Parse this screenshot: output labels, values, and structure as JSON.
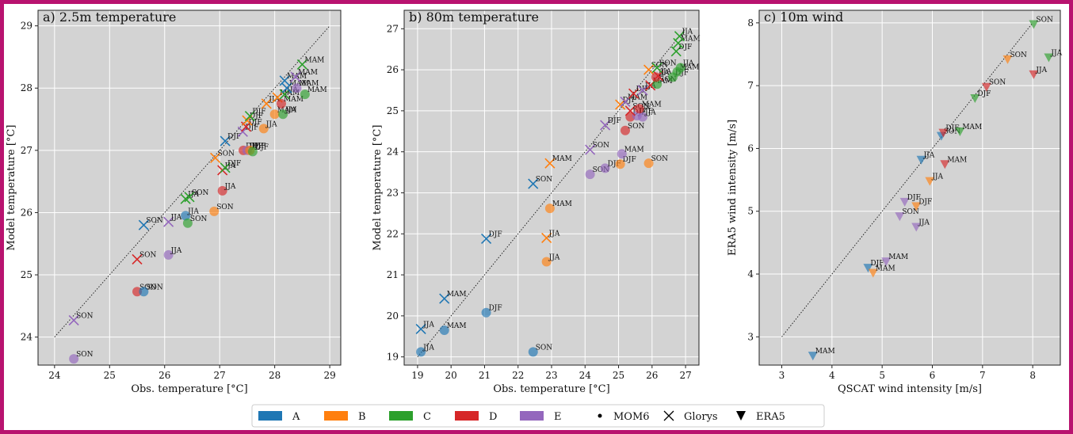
{
  "colors": {
    "frame": "#b8136f",
    "panel_bg": "#d3d3d3",
    "grid": "#ffffff",
    "A": "#1f77b4",
    "B": "#ff7f0e",
    "C": "#2ca02c",
    "D": "#d62728",
    "E": "#9467bd"
  },
  "legend": {
    "items": [
      {
        "label": "A",
        "kind": "patch",
        "color": "#1f77b4"
      },
      {
        "label": "B",
        "kind": "patch",
        "color": "#ff7f0e"
      },
      {
        "label": "C",
        "kind": "patch",
        "color": "#2ca02c"
      },
      {
        "label": "D",
        "kind": "patch",
        "color": "#d62728"
      },
      {
        "label": "E",
        "kind": "patch",
        "color": "#9467bd"
      },
      {
        "label": "MOM6",
        "kind": "dot"
      },
      {
        "label": "Glorys",
        "kind": "cross"
      },
      {
        "label": "ERA5",
        "kind": "triangle"
      }
    ]
  },
  "chart_data": [
    {
      "type": "scatter",
      "title": "a) 2.5m temperature",
      "xlabel": "Obs. temperature [°C]",
      "ylabel": "Model temperature [°C]",
      "xlim": [
        23.7,
        29.2
      ],
      "ylim": [
        23.55,
        29.25
      ],
      "xticks": [
        24,
        25,
        26,
        27,
        28,
        29
      ],
      "yticks": [
        24,
        25,
        26,
        27,
        28,
        29
      ],
      "diagonal": [
        24,
        29
      ],
      "grid": true,
      "points": [
        {
          "x": 24.35,
          "y": 23.65,
          "region": "E",
          "source": "MOM6",
          "label": "SON"
        },
        {
          "x": 24.35,
          "y": 24.27,
          "region": "E",
          "source": "Glorys",
          "label": "SON"
        },
        {
          "x": 25.5,
          "y": 24.73,
          "region": "D",
          "source": "MOM6",
          "label": "SON"
        },
        {
          "x": 25.62,
          "y": 24.73,
          "region": "A",
          "source": "MOM6",
          "label": "SON"
        },
        {
          "x": 25.5,
          "y": 25.25,
          "region": "D",
          "source": "Glorys",
          "label": "SON"
        },
        {
          "x": 25.62,
          "y": 25.8,
          "region": "A",
          "source": "Glorys",
          "label": "SON"
        },
        {
          "x": 26.07,
          "y": 25.32,
          "region": "E",
          "source": "MOM6",
          "label": "JJA"
        },
        {
          "x": 26.07,
          "y": 25.85,
          "region": "E",
          "source": "Glorys",
          "label": "JJA"
        },
        {
          "x": 26.38,
          "y": 25.95,
          "region": "A",
          "source": "MOM6",
          "label": "JJA"
        },
        {
          "x": 26.42,
          "y": 25.83,
          "region": "C",
          "source": "MOM6",
          "label": "SON"
        },
        {
          "x": 26.38,
          "y": 26.22,
          "region": "C",
          "source": "Glorys",
          "label": "JJA"
        },
        {
          "x": 26.45,
          "y": 26.25,
          "region": "C",
          "source": "Glorys",
          "label": "SON"
        },
        {
          "x": 26.9,
          "y": 26.02,
          "region": "B",
          "source": "MOM6",
          "label": "SON"
        },
        {
          "x": 26.92,
          "y": 26.88,
          "region": "B",
          "source": "Glorys",
          "label": "SON"
        },
        {
          "x": 27.05,
          "y": 26.35,
          "region": "D",
          "source": "MOM6",
          "label": "JJA"
        },
        {
          "x": 27.05,
          "y": 26.68,
          "region": "D",
          "source": "Glorys",
          "label": "JJA"
        },
        {
          "x": 27.1,
          "y": 26.72,
          "region": "C",
          "source": "Glorys",
          "label": "DJF"
        },
        {
          "x": 27.1,
          "y": 27.15,
          "region": "A",
          "source": "Glorys",
          "label": "DJF"
        },
        {
          "x": 27.43,
          "y": 27.0,
          "region": "D",
          "source": "MOM6",
          "label": "DJF"
        },
        {
          "x": 27.5,
          "y": 27.0,
          "region": "E",
          "source": "MOM6",
          "label": "DJF"
        },
        {
          "x": 27.55,
          "y": 27.0,
          "region": "B",
          "source": "MOM6",
          "label": "DJF"
        },
        {
          "x": 27.6,
          "y": 26.98,
          "region": "C",
          "source": "MOM6",
          "label": "DJF"
        },
        {
          "x": 27.42,
          "y": 27.3,
          "region": "E",
          "source": "Glorys",
          "label": "DJF"
        },
        {
          "x": 27.48,
          "y": 27.38,
          "region": "D",
          "source": "Glorys",
          "label": "DJF"
        },
        {
          "x": 27.5,
          "y": 27.48,
          "region": "B",
          "source": "Glorys",
          "label": "DJF"
        },
        {
          "x": 27.55,
          "y": 27.55,
          "region": "C",
          "source": "Glorys",
          "label": "DJF"
        },
        {
          "x": 27.8,
          "y": 27.35,
          "region": "B",
          "source": "MOM6",
          "label": "JJA"
        },
        {
          "x": 27.85,
          "y": 27.75,
          "region": "B",
          "source": "Glorys",
          "label": "JJA"
        },
        {
          "x": 28.0,
          "y": 27.58,
          "region": "B",
          "source": "MOM6",
          "label": "MAM"
        },
        {
          "x": 28.05,
          "y": 27.85,
          "region": "B",
          "source": "Glorys",
          "label": "MAM"
        },
        {
          "x": 28.15,
          "y": 27.58,
          "region": "C",
          "source": "MOM6",
          "label": "JJA"
        },
        {
          "x": 28.12,
          "y": 27.75,
          "region": "D",
          "source": "MOM6",
          "label": "MAM"
        },
        {
          "x": 28.18,
          "y": 27.9,
          "region": "C",
          "source": "Glorys",
          "label": "JJA"
        },
        {
          "x": 28.22,
          "y": 28.0,
          "region": "A",
          "source": "Glorys",
          "label": "MAM"
        },
        {
          "x": 28.18,
          "y": 28.12,
          "region": "A",
          "source": "Glorys",
          "label": "MAM"
        },
        {
          "x": 28.4,
          "y": 28.0,
          "region": "E",
          "source": "MOM6",
          "label": "MAM"
        },
        {
          "x": 28.38,
          "y": 28.18,
          "region": "E",
          "source": "Glorys",
          "label": "MAM"
        },
        {
          "x": 28.55,
          "y": 27.9,
          "region": "C",
          "source": "MOM6",
          "label": "MAM"
        },
        {
          "x": 28.5,
          "y": 28.38,
          "region": "C",
          "source": "Glorys",
          "label": "MAM"
        }
      ]
    },
    {
      "type": "scatter",
      "title": "b) 80m temperature",
      "xlabel": "Obs. temperature [°C]",
      "ylabel": "Model temperature [°C]",
      "xlim": [
        18.6,
        27.4
      ],
      "ylim": [
        18.8,
        27.45
      ],
      "xticks": [
        19,
        20,
        21,
        22,
        23,
        24,
        25,
        26,
        27
      ],
      "yticks": [
        19,
        20,
        21,
        22,
        23,
        24,
        25,
        26,
        27
      ],
      "diagonal": [
        19,
        27
      ],
      "grid": true,
      "points": [
        {
          "x": 19.1,
          "y": 19.12,
          "region": "A",
          "source": "MOM6",
          "label": "JJA"
        },
        {
          "x": 19.1,
          "y": 19.68,
          "region": "A",
          "source": "Glorys",
          "label": "JJA"
        },
        {
          "x": 19.8,
          "y": 19.65,
          "region": "A",
          "source": "MOM6",
          "label": "MAM"
        },
        {
          "x": 19.8,
          "y": 20.42,
          "region": "A",
          "source": "Glorys",
          "label": "MAM"
        },
        {
          "x": 21.05,
          "y": 20.08,
          "region": "A",
          "source": "MOM6",
          "label": "DJF"
        },
        {
          "x": 21.05,
          "y": 21.88,
          "region": "A",
          "source": "Glorys",
          "label": "DJF"
        },
        {
          "x": 22.45,
          "y": 19.12,
          "region": "A",
          "source": "MOM6",
          "label": "SON"
        },
        {
          "x": 22.45,
          "y": 23.22,
          "region": "A",
          "source": "Glorys",
          "label": "SON"
        },
        {
          "x": 22.85,
          "y": 21.32,
          "region": "B",
          "source": "MOM6",
          "label": "JJA"
        },
        {
          "x": 22.85,
          "y": 21.9,
          "region": "B",
          "source": "Glorys",
          "label": "JJA"
        },
        {
          "x": 22.95,
          "y": 22.62,
          "region": "B",
          "source": "MOM6",
          "label": "MAM"
        },
        {
          "x": 22.95,
          "y": 23.72,
          "region": "B",
          "source": "Glorys",
          "label": "MAM"
        },
        {
          "x": 24.15,
          "y": 23.45,
          "region": "E",
          "source": "MOM6",
          "label": "SON"
        },
        {
          "x": 24.15,
          "y": 24.05,
          "region": "E",
          "source": "Glorys",
          "label": "SON"
        },
        {
          "x": 24.6,
          "y": 23.6,
          "region": "E",
          "source": "MOM6",
          "label": "DJF"
        },
        {
          "x": 24.6,
          "y": 24.65,
          "region": "E",
          "source": "Glorys",
          "label": "DJF"
        },
        {
          "x": 25.05,
          "y": 23.7,
          "region": "B",
          "source": "MOM6",
          "label": "DJF"
        },
        {
          "x": 25.1,
          "y": 23.95,
          "region": "E",
          "source": "MOM6",
          "label": "MAM"
        },
        {
          "x": 25.9,
          "y": 23.72,
          "region": "B",
          "source": "MOM6",
          "label": "SON"
        },
        {
          "x": 25.2,
          "y": 24.52,
          "region": "D",
          "source": "MOM6",
          "label": "SON"
        },
        {
          "x": 25.35,
          "y": 24.85,
          "region": "D",
          "source": "MOM6",
          "label": "DJF"
        },
        {
          "x": 25.55,
          "y": 24.88,
          "region": "E",
          "source": "MOM6",
          "label": "DJF"
        },
        {
          "x": 25.72,
          "y": 24.85,
          "region": "E",
          "source": "MOM6",
          "label": "JJA"
        },
        {
          "x": 25.05,
          "y": 25.15,
          "region": "B",
          "source": "Glorys",
          "label": "DJF"
        },
        {
          "x": 25.2,
          "y": 25.22,
          "region": "E",
          "source": "Glorys",
          "label": "MAM"
        },
        {
          "x": 25.35,
          "y": 25.0,
          "region": "D",
          "source": "Glorys",
          "label": "SON"
        },
        {
          "x": 25.45,
          "y": 25.42,
          "region": "D",
          "source": "Glorys",
          "label": "DJF"
        },
        {
          "x": 25.62,
          "y": 25.05,
          "region": "D",
          "source": "MOM6",
          "label": "MAM"
        },
        {
          "x": 25.72,
          "y": 25.5,
          "region": "E",
          "source": "Glorys",
          "label": "JJA"
        },
        {
          "x": 25.95,
          "y": 25.62,
          "region": "D",
          "source": "Glorys",
          "label": "MAM"
        },
        {
          "x": 25.9,
          "y": 26.0,
          "region": "B",
          "source": "Glorys",
          "label": "SON"
        },
        {
          "x": 26.15,
          "y": 25.65,
          "region": "C",
          "source": "MOM6",
          "label": "SON"
        },
        {
          "x": 26.12,
          "y": 25.82,
          "region": "D",
          "source": "MOM6",
          "label": "JJA"
        },
        {
          "x": 26.18,
          "y": 25.85,
          "region": "D",
          "source": "Glorys",
          "label": "JJA"
        },
        {
          "x": 26.15,
          "y": 26.05,
          "region": "C",
          "source": "Glorys",
          "label": "SON"
        },
        {
          "x": 26.62,
          "y": 25.82,
          "region": "C",
          "source": "MOM6",
          "label": "DJF"
        },
        {
          "x": 26.75,
          "y": 25.95,
          "region": "C",
          "source": "MOM6",
          "label": "MAM"
        },
        {
          "x": 26.85,
          "y": 26.05,
          "region": "C",
          "source": "MOM6",
          "label": "JJA"
        },
        {
          "x": 26.72,
          "y": 26.45,
          "region": "C",
          "source": "Glorys",
          "label": "DJF"
        },
        {
          "x": 26.78,
          "y": 26.65,
          "region": "C",
          "source": "Glorys",
          "label": "MAM"
        },
        {
          "x": 26.82,
          "y": 26.82,
          "region": "C",
          "source": "Glorys",
          "label": "JJA"
        }
      ]
    },
    {
      "type": "scatter",
      "title": "c) 10m wind",
      "xlabel": "QSCAT wind intensity [m/s]",
      "ylabel": "ERA5 wind intensity [m/s]",
      "xlim": [
        2.55,
        8.55
      ],
      "ylim": [
        2.55,
        8.2
      ],
      "xticks": [
        3,
        4,
        5,
        6,
        7,
        8
      ],
      "yticks": [
        3,
        4,
        5,
        6,
        7,
        8
      ],
      "diagonal": [
        3,
        8
      ],
      "grid": true,
      "points": [
        {
          "x": 3.62,
          "y": 2.7,
          "region": "A",
          "source": "ERA5",
          "label": "MAM"
        },
        {
          "x": 4.72,
          "y": 4.1,
          "region": "A",
          "source": "ERA5",
          "label": "DJF"
        },
        {
          "x": 4.82,
          "y": 4.02,
          "region": "B",
          "source": "ERA5",
          "label": "MAM"
        },
        {
          "x": 5.08,
          "y": 4.2,
          "region": "E",
          "source": "ERA5",
          "label": "MAM"
        },
        {
          "x": 5.35,
          "y": 4.92,
          "region": "E",
          "source": "ERA5",
          "label": "SON"
        },
        {
          "x": 5.45,
          "y": 5.15,
          "region": "E",
          "source": "ERA5",
          "label": "DJF"
        },
        {
          "x": 5.68,
          "y": 5.08,
          "region": "B",
          "source": "ERA5",
          "label": "DJF"
        },
        {
          "x": 5.68,
          "y": 4.75,
          "region": "E",
          "source": "ERA5",
          "label": "JJA"
        },
        {
          "x": 5.78,
          "y": 5.82,
          "region": "A",
          "source": "ERA5",
          "label": "JJA"
        },
        {
          "x": 5.95,
          "y": 5.48,
          "region": "B",
          "source": "ERA5",
          "label": "JJA"
        },
        {
          "x": 6.18,
          "y": 6.2,
          "region": "A",
          "source": "ERA5",
          "label": "SON"
        },
        {
          "x": 6.22,
          "y": 6.25,
          "region": "D",
          "source": "ERA5",
          "label": "DJF"
        },
        {
          "x": 6.25,
          "y": 5.75,
          "region": "D",
          "source": "ERA5",
          "label": "MAM"
        },
        {
          "x": 6.55,
          "y": 6.27,
          "region": "C",
          "source": "ERA5",
          "label": "MAM"
        },
        {
          "x": 6.85,
          "y": 6.8,
          "region": "C",
          "source": "ERA5",
          "label": "DJF"
        },
        {
          "x": 7.08,
          "y": 6.98,
          "region": "D",
          "source": "ERA5",
          "label": "SON"
        },
        {
          "x": 7.5,
          "y": 7.42,
          "region": "B",
          "source": "ERA5",
          "label": "SON"
        },
        {
          "x": 8.02,
          "y": 7.18,
          "region": "D",
          "source": "ERA5",
          "label": "JJA"
        },
        {
          "x": 8.02,
          "y": 7.98,
          "region": "C",
          "source": "ERA5",
          "label": "SON"
        },
        {
          "x": 8.32,
          "y": 7.45,
          "region": "C",
          "source": "ERA5",
          "label": "JJA"
        }
      ]
    }
  ]
}
